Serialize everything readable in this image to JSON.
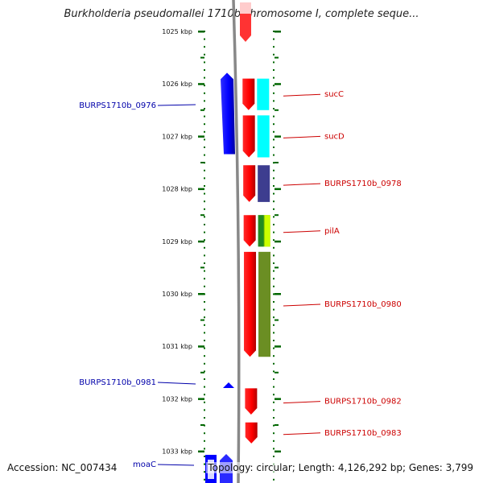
{
  "title": "Burkholderia pseudomallei 1710b chromosome I, complete seque...",
  "footer": {
    "accession": "Accession: NC_007434",
    "summary": "Topology: circular; Length: 4,126,292 bp; Genes: 3,799"
  },
  "colors": {
    "forward_cds": "#ff0000",
    "reverse_cds": "#0000ff",
    "forward_label": "#cc0000",
    "reverse_label": "#0000aa",
    "backbone": "#888888",
    "ruler_tick": "#006600"
  },
  "ruler": {
    "ticks": [
      "1025 kbp",
      "1026 kbp",
      "1027 kbp",
      "1028 kbp",
      "1029 kbp",
      "1030 kbp",
      "1031 kbp",
      "1032 kbp",
      "1033 kbp"
    ]
  },
  "genes": {
    "forward": [
      {
        "label": "sucC",
        "start_kbp": 1025.9,
        "end_kbp": 1026.5,
        "cog_color": "#00ffff"
      },
      {
        "label": "sucD",
        "start_kbp": 1026.6,
        "end_kbp": 1027.4,
        "cog_color": "#00ffff"
      },
      {
        "label": "BURPS1710b_0978",
        "start_kbp": 1027.55,
        "end_kbp": 1028.25,
        "cog_color": "#3d3d8f"
      },
      {
        "label": "pilA",
        "start_kbp": 1028.5,
        "end_kbp": 1029.1,
        "cog_color": "#7fbf00"
      },
      {
        "label": "BURPS1710b_0980",
        "start_kbp": 1029.2,
        "end_kbp": 1031.2,
        "cog_color": "#6b8e23"
      },
      {
        "label": "BURPS1710b_0982",
        "start_kbp": 1031.8,
        "end_kbp": 1032.3,
        "cog_color": ""
      },
      {
        "label": "BURPS1710b_0983",
        "start_kbp": 1032.45,
        "end_kbp": 1032.85,
        "cog_color": ""
      }
    ],
    "reverse": [
      {
        "label": "BURPS1710b_0976",
        "start_kbp": 1025.45,
        "end_kbp": 1027.4
      },
      {
        "label": "BURPS1710b_0981",
        "start_kbp": 1031.7,
        "end_kbp": 1031.8
      },
      {
        "label": "moaC",
        "start_kbp": 1033.1,
        "end_kbp": 1033.5
      }
    ]
  }
}
